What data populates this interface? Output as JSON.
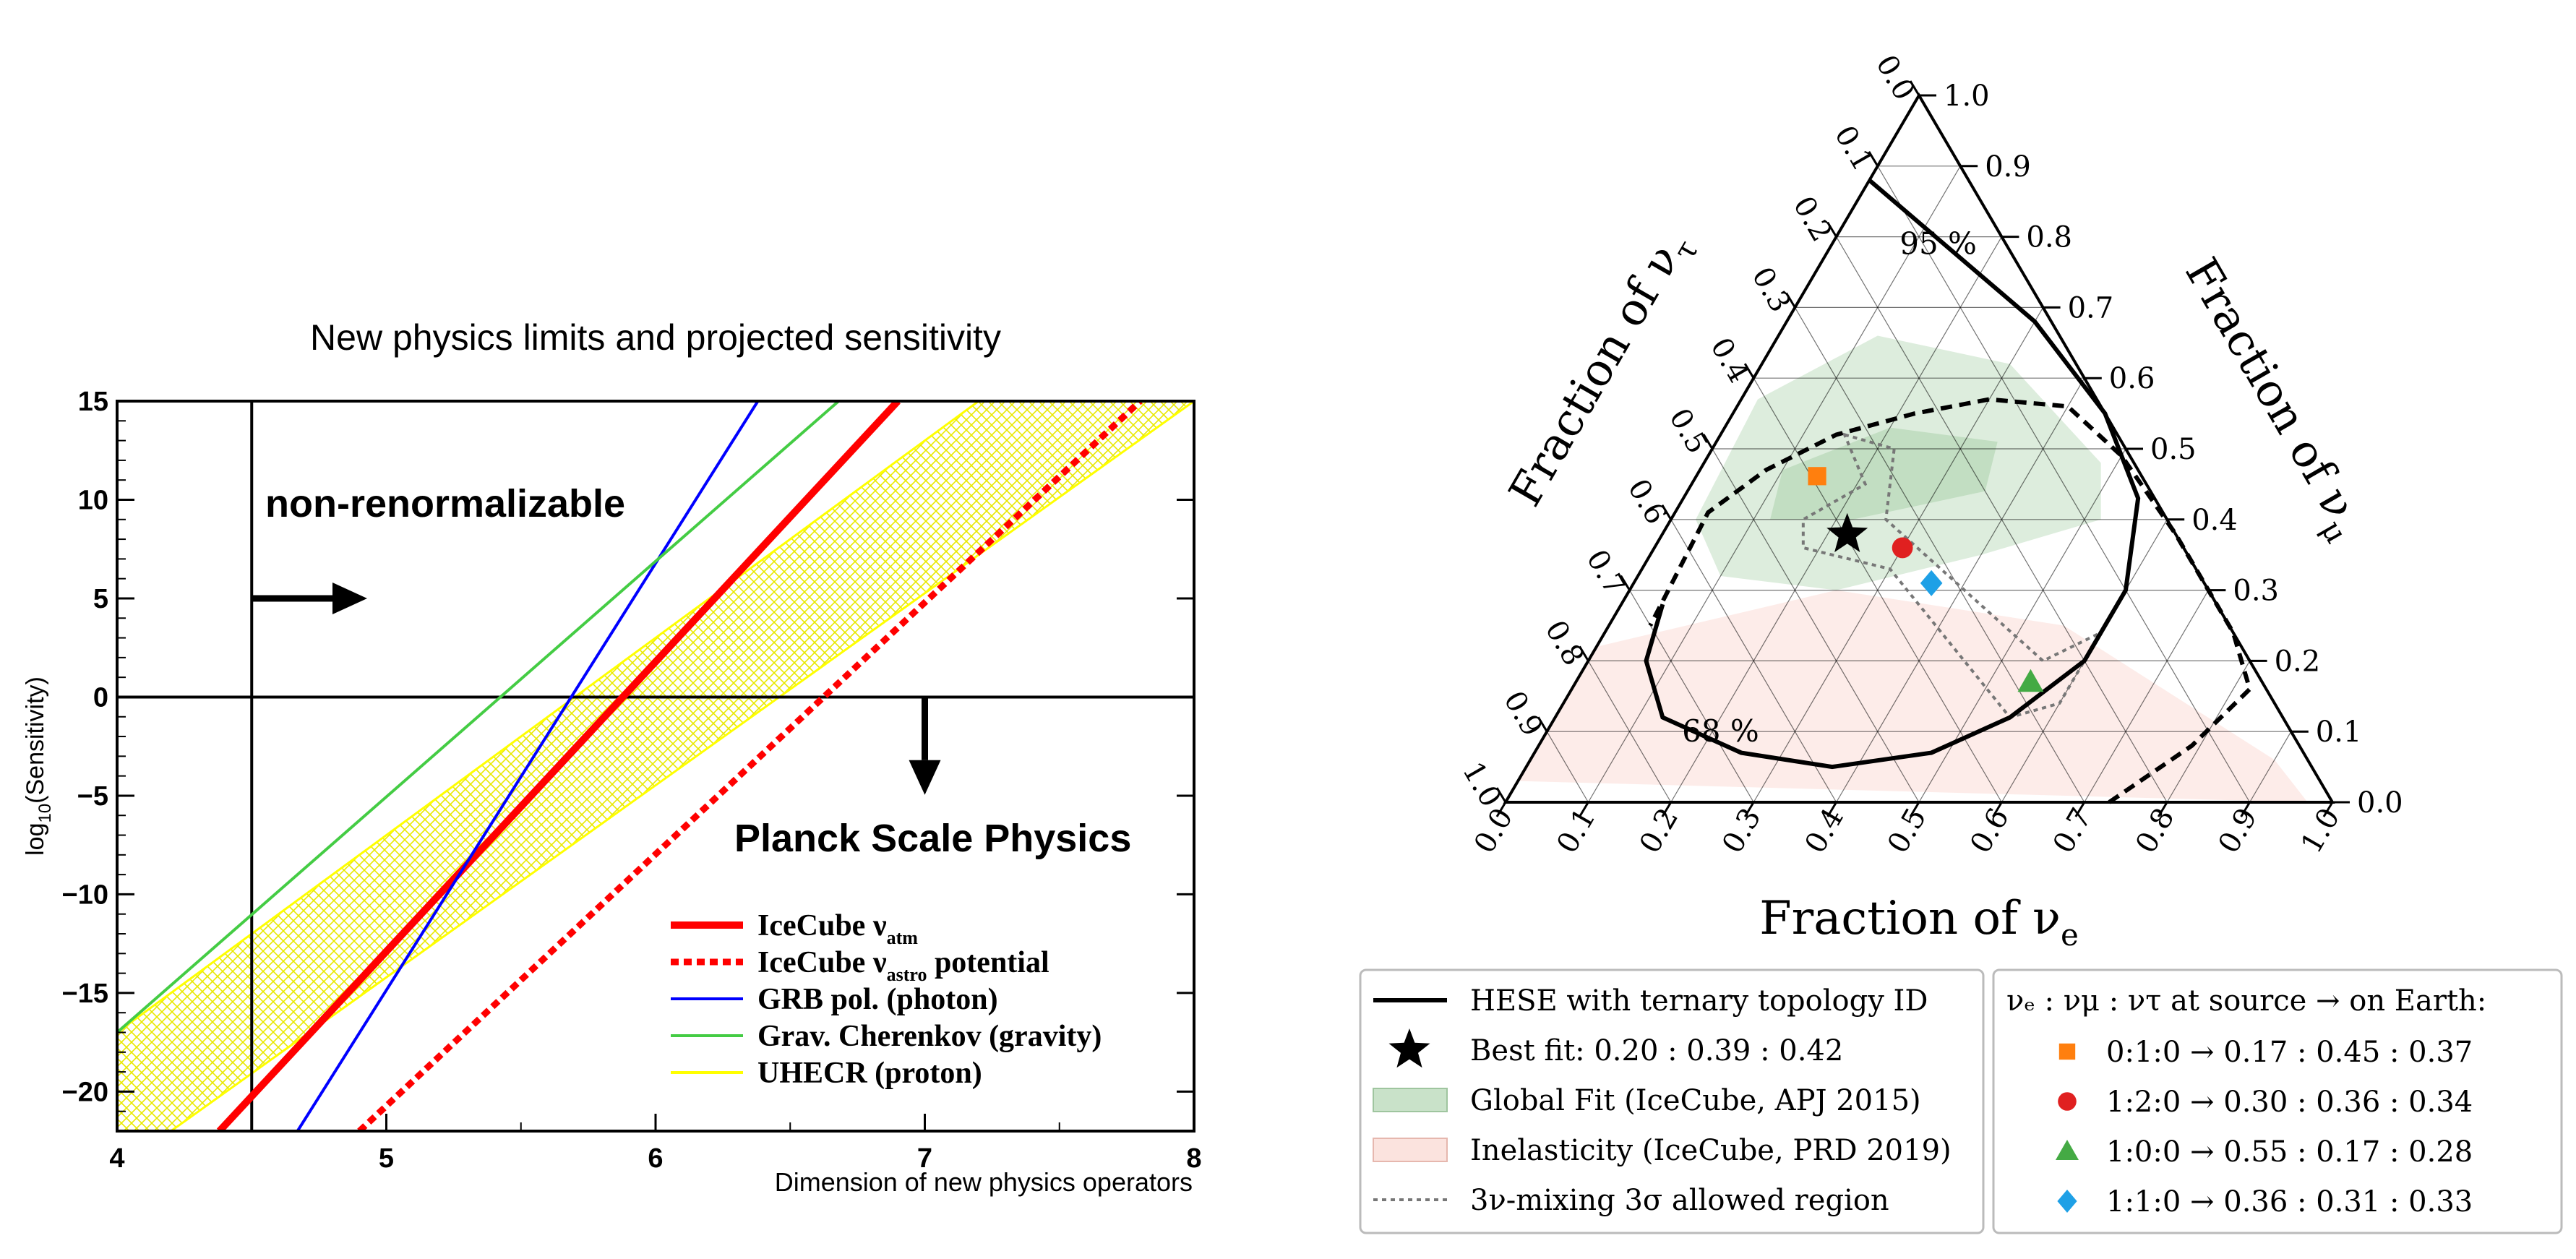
{
  "chart_data": [
    {
      "type": "line",
      "title": "New physics limits and projected sensitivity",
      "xlabel": "Dimension of new physics operators",
      "ylabel_base": "log",
      "ylabel_sub": "10",
      "ylabel_rest": "(Sensitivity)",
      "xlim": [
        4,
        8
      ],
      "ylim": [
        -22,
        15
      ],
      "x_ticks": [
        4,
        5,
        6,
        7,
        8
      ],
      "y_ticks": [
        15,
        10,
        5,
        0,
        -5,
        -10,
        -15,
        -20
      ],
      "y_tick_labels": [
        "15",
        "10",
        "5",
        "0",
        "−5",
        "−10",
        "−15",
        "−20"
      ],
      "reference_lines": {
        "vertical_x": 4.5,
        "horizontal_y": 0
      },
      "annotations": {
        "non_renormalizable": "non-renormalizable",
        "planck": "Planck Scale Physics"
      },
      "series": [
        {
          "name": "IceCube",
          "sym": "ν",
          "sub": "atm",
          "rest": "",
          "color": "#ff0000",
          "style": "solid-thick",
          "x": [
            4.38,
            6.9
          ],
          "y": [
            -22,
            15
          ]
        },
        {
          "name": "IceCube",
          "sym": "ν",
          "sub": "astro",
          "rest": " potential",
          "color": "#ff0000",
          "style": "dotted-thick",
          "x": [
            4.9,
            7.8
          ],
          "y": [
            -22,
            15
          ]
        },
        {
          "name": "GRB pol. (photon)",
          "color": "#0000ff",
          "style": "solid",
          "x": [
            4.67,
            6.38
          ],
          "y": [
            -22,
            15
          ]
        },
        {
          "name": "Grav. Cherenkov (gravity)",
          "color": "#44cc44",
          "style": "solid",
          "x": [
            4.0,
            6.68
          ],
          "y": [
            -17,
            15
          ]
        },
        {
          "name": "UHECR (proton)",
          "color": "#ffff00",
          "style": "band",
          "upper": {
            "x": [
              4.0,
              7.2
            ],
            "y": [
              -17,
              15
            ]
          },
          "lower": {
            "x": [
              4.2,
              8.0
            ],
            "y": [
              -22,
              15
            ]
          }
        }
      ]
    },
    {
      "type": "scatter",
      "subtype": "ternary",
      "axis_labels": {
        "nu_e": "Fraction of ν",
        "nu_e_sub": "e",
        "nu_mu": "Fraction of ν",
        "nu_mu_sub": "μ",
        "nu_tau": "Fraction of ν",
        "nu_tau_sub": "τ"
      },
      "ticks": [
        "0.0",
        "0.1",
        "0.2",
        "0.3",
        "0.4",
        "0.5",
        "0.6",
        "0.7",
        "0.8",
        "0.9",
        "1.0"
      ],
      "contour_labels": [
        "68 %",
        "95 %"
      ],
      "contour_68": [
        [
          0.0,
          0.88,
          0.12
        ],
        [
          0.12,
          0.8,
          0.08
        ],
        [
          0.3,
          0.68,
          0.02
        ],
        [
          0.45,
          0.55,
          0.0
        ],
        [
          0.55,
          0.43,
          0.02
        ],
        [
          0.6,
          0.3,
          0.1
        ],
        [
          0.6,
          0.2,
          0.2
        ],
        [
          0.55,
          0.12,
          0.33
        ],
        [
          0.48,
          0.07,
          0.45
        ],
        [
          0.37,
          0.05,
          0.58
        ],
        [
          0.25,
          0.07,
          0.68
        ],
        [
          0.13,
          0.12,
          0.75
        ],
        [
          0.07,
          0.2,
          0.73
        ],
        [
          0.05,
          0.28,
          0.67
        ]
      ],
      "contour_95": [
        [
          0.73,
          0.0,
          0.27
        ],
        [
          0.79,
          0.08,
          0.13
        ],
        [
          0.82,
          0.16,
          0.02
        ],
        [
          0.76,
          0.24,
          0.0
        ],
        [
          0.62,
          0.38,
          0.0
        ],
        [
          0.5,
          0.49,
          0.01
        ],
        [
          0.4,
          0.56,
          0.04
        ],
        [
          0.3,
          0.57,
          0.13
        ],
        [
          0.22,
          0.55,
          0.23
        ],
        [
          0.14,
          0.52,
          0.34
        ],
        [
          0.08,
          0.47,
          0.45
        ],
        [
          0.04,
          0.41,
          0.55
        ],
        [
          0.05,
          0.25,
          0.7
        ]
      ],
      "points": [
        {
          "label": "Best fit",
          "marker": "star",
          "color": "#000000",
          "f": [
            0.2,
            0.39,
            0.42
          ]
        },
        {
          "label": "0:1:0",
          "marker": "square",
          "color": "#ff7f0e",
          "f": [
            0.17,
            0.45,
            0.37
          ]
        },
        {
          "label": "1:2:0",
          "marker": "circle",
          "color": "#e02020",
          "f": [
            0.3,
            0.36,
            0.34
          ]
        },
        {
          "label": "1:0:0",
          "marker": "triangle",
          "color": "#44aa44",
          "f": [
            0.55,
            0.17,
            0.28
          ]
        },
        {
          "label": "1:1:0",
          "marker": "diamond",
          "color": "#1ea0e6",
          "f": [
            0.36,
            0.31,
            0.33
          ]
        }
      ],
      "legend_left": [
        {
          "key": "line",
          "text": "HESE with ternary topology ID"
        },
        {
          "key": "star",
          "text": "Best fit: 0.20 : 0.39 : 0.42"
        },
        {
          "key": "green-box",
          "text": "Global Fit (IceCube, APJ 2015)"
        },
        {
          "key": "pink-box",
          "text": "Inelasticity (IceCube, PRD 2019)"
        },
        {
          "key": "dotted",
          "text": "3ν-mixing 3σ allowed region"
        }
      ],
      "legend_right_title": "νₑ : νμ : ντ at source → on Earth:",
      "legend_right": [
        {
          "key": "square",
          "color": "#ff7f0e",
          "text": "0:1:0 → 0.17 : 0.45 : 0.37"
        },
        {
          "key": "circle",
          "color": "#e02020",
          "text": "1:2:0 → 0.30 : 0.36 : 0.34"
        },
        {
          "key": "triangle",
          "color": "#44aa44",
          "text": "1:0:0 → 0.55 : 0.17 : 0.28"
        },
        {
          "key": "diamond",
          "color": "#1ea0e6",
          "text": "1:1:0 → 0.36 : 0.31 : 0.33"
        }
      ]
    }
  ]
}
